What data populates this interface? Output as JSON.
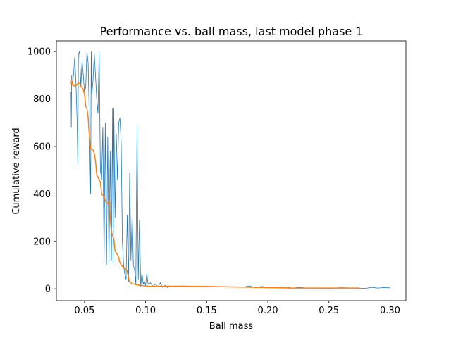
{
  "chart_data": {
    "type": "line",
    "title": "Performance vs. ball mass, last model phase 1",
    "xlabel": "Ball mass",
    "ylabel": "Cumulative reward",
    "xlim": [
      0.027,
      0.313
    ],
    "ylim": [
      -50,
      1045
    ],
    "xticks": [
      0.05,
      0.1,
      0.15,
      0.2,
      0.25,
      0.3
    ],
    "xtick_labels": [
      "0.05",
      "0.10",
      "0.15",
      "0.20",
      "0.25",
      "0.30"
    ],
    "yticks": [
      0,
      200,
      400,
      600,
      800,
      1000
    ],
    "ytick_labels": [
      "0",
      "200",
      "400",
      "600",
      "800",
      "1000"
    ],
    "grid": false,
    "legend": "none",
    "colors": {
      "raw": "#1f77b4",
      "smoothed": "#ff7f0e"
    },
    "series": [
      {
        "values": [
          [
            0.039,
            830
          ],
          [
            0.0392,
            680
          ],
          [
            0.0395,
            900
          ],
          [
            0.0398,
            870
          ],
          [
            0.04,
            860
          ],
          [
            0.041,
            900
          ],
          [
            0.042,
            975
          ],
          [
            0.043,
            870
          ],
          [
            0.044,
            700
          ],
          [
            0.0445,
            525
          ],
          [
            0.045,
            990
          ],
          [
            0.046,
            1000
          ],
          [
            0.047,
            850
          ],
          [
            0.048,
            960
          ],
          [
            0.049,
            900
          ],
          [
            0.05,
            830
          ],
          [
            0.051,
            850
          ],
          [
            0.052,
            1000
          ],
          [
            0.053,
            950
          ],
          [
            0.054,
            700
          ],
          [
            0.055,
            400
          ],
          [
            0.0555,
            1000
          ],
          [
            0.056,
            820
          ],
          [
            0.057,
            880
          ],
          [
            0.058,
            990
          ],
          [
            0.059,
            900
          ],
          [
            0.06,
            800
          ],
          [
            0.061,
            740
          ],
          [
            0.062,
            1000
          ],
          [
            0.063,
            500
          ],
          [
            0.064,
            460
          ],
          [
            0.065,
            680
          ],
          [
            0.066,
            120
          ],
          [
            0.067,
            700
          ],
          [
            0.068,
            100
          ],
          [
            0.069,
            640
          ],
          [
            0.07,
            110
          ],
          [
            0.071,
            580
          ],
          [
            0.072,
            120
          ],
          [
            0.073,
            760
          ],
          [
            0.0735,
            110
          ],
          [
            0.074,
            760
          ],
          [
            0.075,
            300
          ],
          [
            0.076,
            650
          ],
          [
            0.077,
            460
          ],
          [
            0.078,
            700
          ],
          [
            0.079,
            720
          ],
          [
            0.08,
            620
          ],
          [
            0.081,
            200
          ],
          [
            0.082,
            100
          ],
          [
            0.083,
            60
          ],
          [
            0.084,
            40
          ],
          [
            0.085,
            310
          ],
          [
            0.086,
            30
          ],
          [
            0.087,
            490
          ],
          [
            0.088,
            120
          ],
          [
            0.089,
            320
          ],
          [
            0.09,
            100
          ],
          [
            0.091,
            80
          ],
          [
            0.092,
            20
          ],
          [
            0.093,
            690
          ],
          [
            0.094,
            40
          ],
          [
            0.095,
            290
          ],
          [
            0.096,
            10
          ],
          [
            0.097,
            70
          ],
          [
            0.098,
            20
          ],
          [
            0.099,
            30
          ],
          [
            0.1,
            15
          ],
          [
            0.101,
            65
          ],
          [
            0.102,
            20
          ],
          [
            0.104,
            25
          ],
          [
            0.106,
            10
          ],
          [
            0.108,
            20
          ],
          [
            0.11,
            8
          ],
          [
            0.112,
            25
          ],
          [
            0.114,
            5
          ],
          [
            0.116,
            15
          ],
          [
            0.118,
            5
          ],
          [
            0.12,
            10
          ],
          [
            0.125,
            8
          ],
          [
            0.13,
            12
          ],
          [
            0.14,
            10
          ],
          [
            0.15,
            10
          ],
          [
            0.16,
            9
          ],
          [
            0.17,
            8
          ],
          [
            0.18,
            7
          ],
          [
            0.185,
            12
          ],
          [
            0.19,
            4
          ],
          [
            0.195,
            10
          ],
          [
            0.2,
            5
          ],
          [
            0.205,
            7
          ],
          [
            0.21,
            3
          ],
          [
            0.215,
            8
          ],
          [
            0.22,
            2
          ],
          [
            0.225,
            6
          ],
          [
            0.23,
            4
          ],
          [
            0.24,
            3
          ],
          [
            0.25,
            2
          ],
          [
            0.26,
            5
          ],
          [
            0.27,
            3
          ],
          [
            0.28,
            2
          ],
          [
            0.285,
            6
          ],
          [
            0.29,
            3
          ],
          [
            0.295,
            5
          ],
          [
            0.3,
            4
          ]
        ]
      },
      {
        "values": [
          [
            0.039,
            865
          ],
          [
            0.0395,
            880
          ],
          [
            0.04,
            860
          ],
          [
            0.042,
            855
          ],
          [
            0.044,
            860
          ],
          [
            0.045,
            870
          ],
          [
            0.047,
            855
          ],
          [
            0.049,
            840
          ],
          [
            0.05,
            820
          ],
          [
            0.051,
            770
          ],
          [
            0.052,
            760
          ],
          [
            0.053,
            720
          ],
          [
            0.054,
            640
          ],
          [
            0.055,
            590
          ],
          [
            0.056,
            590
          ],
          [
            0.057,
            585
          ],
          [
            0.058,
            570
          ],
          [
            0.059,
            540
          ],
          [
            0.06,
            480
          ],
          [
            0.061,
            470
          ],
          [
            0.062,
            460
          ],
          [
            0.063,
            450
          ],
          [
            0.064,
            400
          ],
          [
            0.065,
            395
          ],
          [
            0.066,
            390
          ],
          [
            0.067,
            370
          ],
          [
            0.068,
            365
          ],
          [
            0.069,
            360
          ],
          [
            0.07,
            360
          ],
          [
            0.0705,
            370
          ],
          [
            0.071,
            300
          ],
          [
            0.072,
            240
          ],
          [
            0.073,
            225
          ],
          [
            0.074,
            210
          ],
          [
            0.075,
            160
          ],
          [
            0.076,
            150
          ],
          [
            0.077,
            145
          ],
          [
            0.078,
            130
          ],
          [
            0.079,
            110
          ],
          [
            0.08,
            100
          ],
          [
            0.082,
            90
          ],
          [
            0.084,
            80
          ],
          [
            0.085,
            75
          ],
          [
            0.086,
            45
          ],
          [
            0.087,
            30
          ],
          [
            0.088,
            25
          ],
          [
            0.09,
            20
          ],
          [
            0.092,
            18
          ],
          [
            0.095,
            15
          ],
          [
            0.1,
            12
          ],
          [
            0.105,
            10
          ],
          [
            0.11,
            10
          ],
          [
            0.12,
            11
          ],
          [
            0.13,
            11
          ],
          [
            0.14,
            10
          ],
          [
            0.15,
            10
          ],
          [
            0.16,
            9
          ],
          [
            0.17,
            8
          ],
          [
            0.18,
            7
          ],
          [
            0.19,
            6
          ],
          [
            0.2,
            5
          ],
          [
            0.21,
            4
          ],
          [
            0.22,
            3
          ],
          [
            0.23,
            3
          ],
          [
            0.24,
            3
          ],
          [
            0.25,
            3
          ],
          [
            0.26,
            3
          ],
          [
            0.27,
            3
          ],
          [
            0.275,
            3
          ]
        ]
      }
    ]
  }
}
